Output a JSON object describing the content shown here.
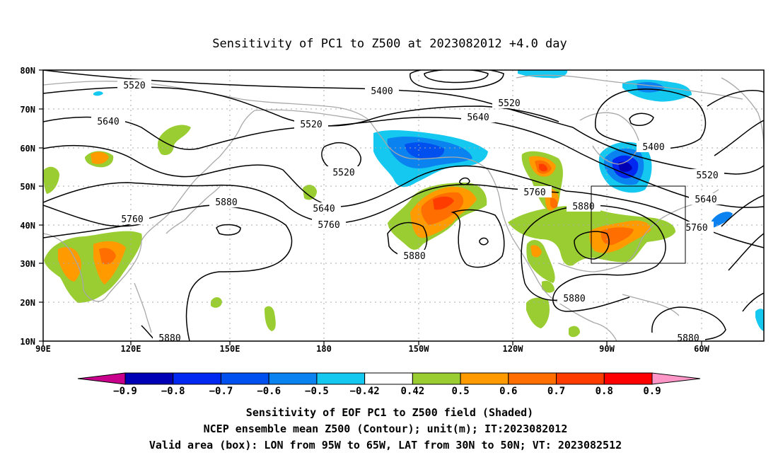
{
  "title": "Sensitivity of PC1 to Z500 at 2023082012 +4.0 day",
  "map": {
    "lat_labels": [
      "80N",
      "70N",
      "60N",
      "50N",
      "40N",
      "30N",
      "20N",
      "10N"
    ],
    "lon_labels": [
      "90E",
      "120E",
      "150E",
      "180",
      "150W",
      "120W",
      "90W",
      "60W"
    ],
    "contour_labels": [
      "5520",
      "5400",
      "5520",
      "5640",
      "5520",
      "5640",
      "5520",
      "5400",
      "5520",
      "5760",
      "5880",
      "5640",
      "5760",
      "5760",
      "5880",
      "5880",
      "5640",
      "5880",
      "5760",
      "5880",
      "5880"
    ],
    "shading": {
      "positive_sensitivity_color": "#9acd32",
      "negative_sensitivity_color": "#1e90ff"
    },
    "valid_box": {
      "lon": [
        "95W",
        "65W"
      ],
      "lat": [
        "30N",
        "50N"
      ]
    }
  },
  "colorbar": {
    "labels": [
      "-0.9",
      "-0.8",
      "-0.7",
      "-0.6",
      "-0.5",
      "-0.42",
      "0.42",
      "0.5",
      "0.6",
      "0.7",
      "0.8",
      "0.9"
    ],
    "colors": [
      "#0000b4",
      "#0028f0",
      "#0050f0",
      "#0a82f0",
      "#14c8f0",
      "#ffffff",
      "#9acd32",
      "#ff9b00",
      "#ff6e00",
      "#ff3c00",
      "#ff0000"
    ],
    "under_color": "#c8008c",
    "over_color": "#ff96c8"
  },
  "caption": {
    "line1": "Sensitivity of EOF PC1 to Z500 field (Shaded)",
    "line2": "NCEP ensemble mean Z500 (Contour); unit(m); IT:2023082012",
    "line3": "Valid area (box): LON from 95W to 65W, LAT from 30N to 50N; VT: 2023082512"
  }
}
